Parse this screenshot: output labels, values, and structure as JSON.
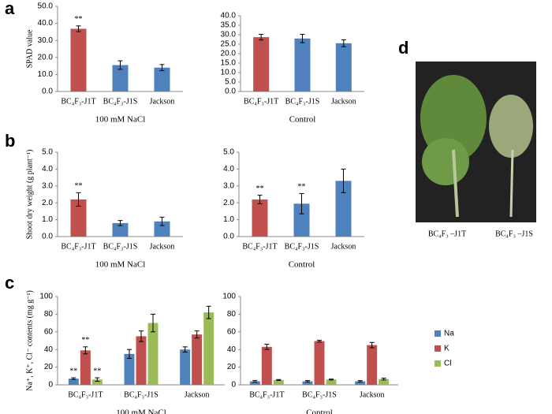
{
  "panel_labels": [
    "a",
    "b",
    "c",
    "d"
  ],
  "chart_data": [
    {
      "type": "bar",
      "y_label": "SPAD value",
      "x_label": "100 mM  NaCl",
      "categories": [
        "BC₄F₃-J1T",
        "BC₄F₃-J1S",
        "Jackson"
      ],
      "values": [
        36.8,
        15.5,
        14.0
      ],
      "errors": [
        1.7,
        2.5,
        1.8
      ],
      "annotations": [
        "**",
        null,
        null
      ],
      "colors": [
        "#c0504d",
        "#4f81bd",
        "#4f81bd"
      ],
      "ylim": [
        0,
        50
      ],
      "yticks": [
        {
          "value": 0,
          "label": "0.0"
        },
        {
          "value": 10,
          "label": "10.0"
        },
        {
          "value": 20,
          "label": "20.0"
        },
        {
          "value": 30,
          "label": "30.0"
        },
        {
          "value": 40,
          "label": "40.0"
        },
        {
          "value": 50,
          "label": "50.0"
        }
      ]
    },
    {
      "type": "bar",
      "x_label": "Control",
      "categories": [
        "BC₄F₃-J1T",
        "BC₄F₃-J1S",
        "Jackson"
      ],
      "values": [
        28.7,
        28.0,
        25.5
      ],
      "errors": [
        1.5,
        2.2,
        1.8
      ],
      "colors": [
        "#c0504d",
        "#4f81bd",
        "#4f81bd"
      ],
      "ylim": [
        0,
        40
      ],
      "yticks": [
        {
          "value": 0,
          "label": "0.0"
        },
        {
          "value": 5,
          "label": "5.0"
        },
        {
          "value": 10,
          "label": "10.0"
        },
        {
          "value": 15,
          "label": "15.0"
        },
        {
          "value": 20,
          "label": "20.0"
        },
        {
          "value": 25,
          "label": "25.0"
        },
        {
          "value": 30,
          "label": "30.0"
        },
        {
          "value": 35,
          "label": "35.0"
        },
        {
          "value": 40,
          "label": "40.0"
        }
      ]
    },
    {
      "type": "bar",
      "y_label": "Shoot dry weight (g plant⁻¹)",
      "x_label": "100 mM  NaCl",
      "categories": [
        "BC₄F₃-J1T",
        "BC₄F₃-J1S",
        "Jackson"
      ],
      "values": [
        2.2,
        0.8,
        0.9
      ],
      "errors": [
        0.4,
        0.15,
        0.25
      ],
      "annotations": [
        "**",
        null,
        null
      ],
      "colors": [
        "#c0504d",
        "#4f81bd",
        "#4f81bd"
      ],
      "ylim": [
        0,
        5
      ],
      "yticks": [
        {
          "value": 0,
          "label": "0.0"
        },
        {
          "value": 1,
          "label": "1.0"
        },
        {
          "value": 2,
          "label": "2.0"
        },
        {
          "value": 3,
          "label": "3.0"
        },
        {
          "value": 4,
          "label": "4.0"
        },
        {
          "value": 5,
          "label": "5.0"
        }
      ]
    },
    {
      "type": "bar",
      "x_label": "Control",
      "categories": [
        "BC₄F₃-J1T",
        "BC₄F₃-J1S",
        "Jackson"
      ],
      "values": [
        2.2,
        1.95,
        3.3
      ],
      "errors": [
        0.25,
        0.6,
        0.7
      ],
      "annotations": [
        "**",
        "**",
        null
      ],
      "colors": [
        "#c0504d",
        "#4f81bd",
        "#4f81bd"
      ],
      "ylim": [
        0,
        5
      ],
      "yticks": [
        {
          "value": 0,
          "label": "0.0"
        },
        {
          "value": 1,
          "label": "1.0"
        },
        {
          "value": 2,
          "label": "2.0"
        },
        {
          "value": 3,
          "label": "3.0"
        },
        {
          "value": 4,
          "label": "4.0"
        },
        {
          "value": 5,
          "label": "5.0"
        }
      ]
    },
    {
      "type": "bar",
      "y_label": "Na⁺, K⁺, Cl⁻ contents (mg g⁻¹)",
      "x_label": "100 mM  NaCl",
      "categories": [
        "BC₄F₃-J1T",
        "BC₄F₃-J1S",
        "Jackson"
      ],
      "series": [
        {
          "color": "#4f81bd",
          "values": [
            7,
            35,
            40
          ],
          "errors": [
            1,
            5,
            3
          ],
          "annotations": [
            "**",
            null,
            null
          ]
        },
        {
          "color": "#c0504d",
          "values": [
            39,
            55,
            57
          ],
          "errors": [
            4,
            6,
            4
          ],
          "annotations": [
            "**",
            null,
            null
          ]
        },
        {
          "color": "#9bbb59",
          "values": [
            6,
            70,
            82
          ],
          "errors": [
            2,
            10,
            7
          ],
          "annotations": [
            "**",
            null,
            null
          ]
        }
      ],
      "ylim": [
        0,
        100
      ],
      "yticks": [
        0,
        20,
        40,
        60,
        80,
        100
      ]
    },
    {
      "type": "bar",
      "x_label": "Control",
      "legend": "right",
      "categories": [
        "BC₄F₃-J1T",
        "BC₄F₃-J1S",
        "Jackson"
      ],
      "series": [
        {
          "name": "Na",
          "color": "#4f81bd",
          "values": [
            4,
            4,
            4
          ],
          "errors": [
            1,
            0.8,
            0.8
          ]
        },
        {
          "name": "K",
          "color": "#c0504d",
          "values": [
            43,
            49.5,
            45
          ],
          "errors": [
            3,
            1,
            3
          ]
        },
        {
          "name": "Cl",
          "color": "#9bbb59",
          "values": [
            5.5,
            6,
            6.5
          ],
          "errors": [
            0.5,
            0.5,
            1
          ]
        }
      ],
      "ylim": [
        0,
        100
      ],
      "yticks": [
        0,
        20,
        40,
        60,
        80,
        100
      ]
    }
  ],
  "photo": {
    "labels": [
      "BC₄F₃ –J1T",
      "BC₄F₃ –J1S"
    ]
  }
}
